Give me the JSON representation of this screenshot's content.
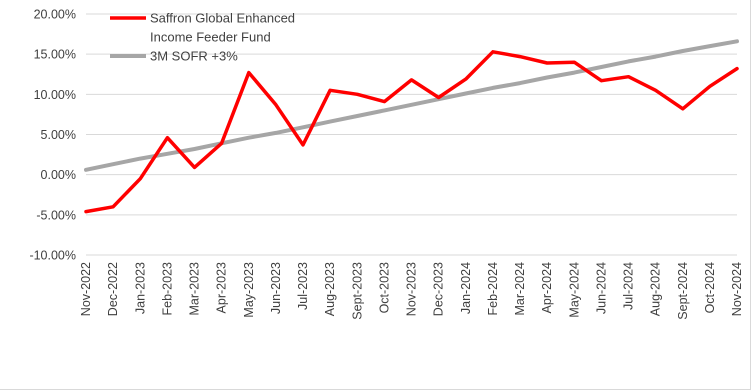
{
  "chart_data": {
    "type": "line",
    "title": "",
    "xlabel": "",
    "ylabel": "",
    "categories": [
      "Nov-2022",
      "Dec-2022",
      "Jan-2023",
      "Feb-2023",
      "Mar-2023",
      "Apr-2023",
      "May-2023",
      "Jun-2023",
      "Jul-2023",
      "Aug-2023",
      "Sept-2023",
      "Oct-2023",
      "Nov-2023",
      "Dec-2023",
      "Jan-2024",
      "Feb-2024",
      "Mar-2024",
      "Apr-2024",
      "May-2024",
      "Jun-2024",
      "Jul-2024",
      "Aug-2024",
      "Sept-2024",
      "Oct-2024",
      "Nov-2024"
    ],
    "y_ticks": [
      "20.00%",
      "15.00%",
      "10.00%",
      "5.00%",
      "0.00%",
      "-5.00%",
      "-10.00%"
    ],
    "ylim": [
      -10,
      20
    ],
    "grid": true,
    "legend_position": "top-left",
    "series": [
      {
        "name": "Saffron Global Enhanced\nIncome Feeder Fund",
        "legend_lines": [
          "Saffron Global Enhanced",
          "Income Feeder Fund"
        ],
        "color": "#ff0000",
        "values": [
          -4.6,
          -4.0,
          -0.5,
          4.6,
          0.9,
          3.9,
          12.7,
          8.7,
          3.7,
          10.5,
          10.0,
          9.1,
          11.8,
          9.6,
          11.9,
          15.3,
          14.7,
          13.9,
          14.0,
          11.7,
          12.2,
          10.5,
          8.2,
          11.0,
          13.2
        ]
      },
      {
        "name": "3M SOFR +3%",
        "legend_lines": [
          "3M SOFR +3%"
        ],
        "color": "#a6a6a6",
        "values": [
          0.6,
          1.3,
          2.0,
          2.6,
          3.2,
          3.9,
          4.6,
          5.2,
          5.9,
          6.6,
          7.3,
          8.0,
          8.7,
          9.4,
          10.1,
          10.8,
          11.4,
          12.1,
          12.7,
          13.4,
          14.1,
          14.7,
          15.4,
          16.0,
          16.6
        ]
      }
    ]
  }
}
